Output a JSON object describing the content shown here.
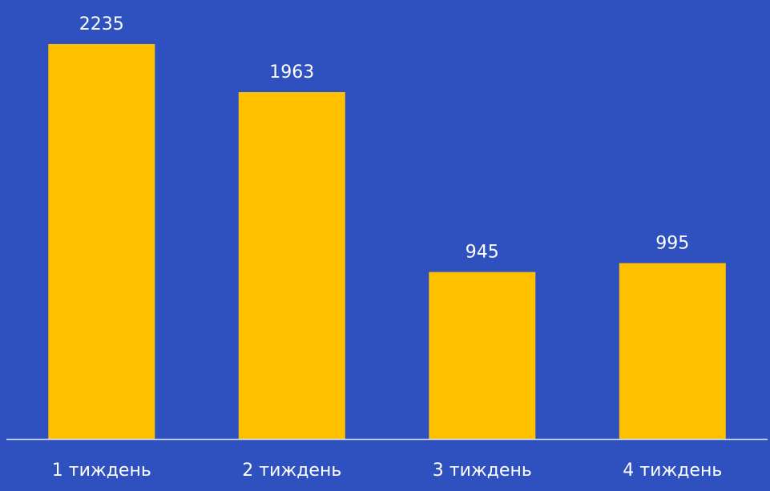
{
  "background_color": "#2e51bf",
  "bar_color": "#ffc000",
  "axis_color": "#d9e1f2",
  "text_color": "#ffffff",
  "chart_data": {
    "type": "bar",
    "categories": [
      "1 тиждень",
      "2 тиждень",
      "3 тиждень",
      "4 тиждень"
    ],
    "values": [
      2235,
      1963,
      945,
      995
    ],
    "data_labels": [
      "2235",
      "1963",
      "945",
      "995"
    ],
    "title": "",
    "xlabel": "",
    "ylabel": "",
    "ylim": [
      0,
      2235
    ],
    "grid": false,
    "legend": "none"
  }
}
